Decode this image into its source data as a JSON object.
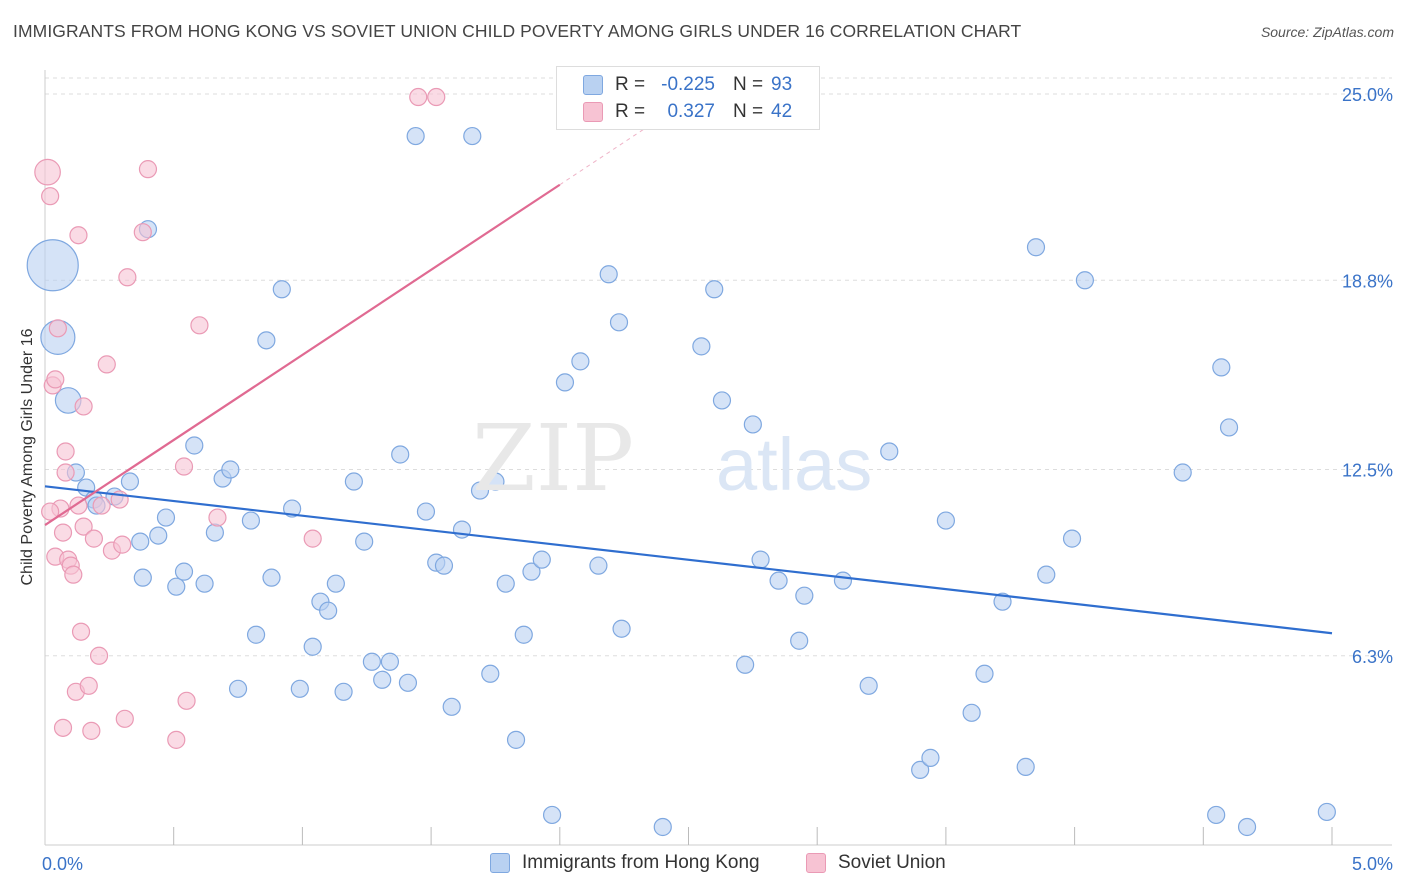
{
  "title": "IMMIGRANTS FROM HONG KONG VS SOVIET UNION CHILD POVERTY AMONG GIRLS UNDER 16 CORRELATION CHART",
  "source": "Source: ZipAtlas.com",
  "watermark": {
    "zip": "ZIP",
    "atlas": "atlas"
  },
  "legend": {
    "r_label": "R =",
    "n_label": "N =",
    "rows": [
      {
        "r": "-0.225",
        "n": "93"
      },
      {
        "r": "0.327",
        "n": "42"
      }
    ]
  },
  "colors": {
    "series1_fill": "#b9d1f1",
    "series1_stroke": "#7fa8e0",
    "series1_line": "#2f6ecf",
    "series2_fill": "#f7c3d3",
    "series2_stroke": "#ea9ab5",
    "series2_line": "#e06a92",
    "tick_label": "#3a73c8",
    "grid": "#dddddd"
  },
  "chart_data": {
    "type": "scatter",
    "title": "IMMIGRANTS FROM HONG KONG VS SOVIET UNION CHILD POVERTY AMONG GIRLS UNDER 16 CORRELATION CHART",
    "xlabel": "",
    "ylabel": "Child Poverty Among Girls Under 16",
    "xlim": [
      0,
      5
    ],
    "ylim": [
      0,
      25.8
    ],
    "x_tick_labels": [
      {
        "value": 0,
        "label": "0.0%"
      },
      {
        "value": 5,
        "label": "5.0%"
      }
    ],
    "y_tick_labels": [
      {
        "value": 6.3,
        "label": "6.3%"
      },
      {
        "value": 12.5,
        "label": "12.5%"
      },
      {
        "value": 18.8,
        "label": "18.8%"
      },
      {
        "value": 25.0,
        "label": "25.0%"
      }
    ],
    "x_minor_ticks": [
      0.5,
      1.0,
      1.5,
      2.0,
      2.5,
      3.0,
      3.5,
      4.0,
      4.5,
      5.0
    ],
    "grid": true,
    "legend_position": "top-center",
    "series": [
      {
        "name": "Immigrants from Hong Kong",
        "r": -0.225,
        "n": 93,
        "trend": {
          "x": [
            0,
            5
          ],
          "y": [
            11.94,
            7.05
          ]
        },
        "points": [
          [
            0.03,
            19.3,
            3
          ],
          [
            0.05,
            16.9,
            2
          ],
          [
            0.09,
            14.8,
            1.5
          ],
          [
            0.12,
            12.4,
            1
          ],
          [
            0.16,
            11.9,
            1
          ],
          [
            0.19,
            11.5,
            1
          ],
          [
            0.2,
            11.3,
            1
          ],
          [
            0.27,
            11.6,
            1
          ],
          [
            0.33,
            12.1,
            1
          ],
          [
            0.37,
            10.1,
            1
          ],
          [
            0.38,
            8.9,
            1
          ],
          [
            0.4,
            20.5,
            1
          ],
          [
            0.44,
            10.3,
            1
          ],
          [
            0.47,
            10.9,
            1
          ],
          [
            0.51,
            8.6,
            1
          ],
          [
            0.54,
            9.1,
            1
          ],
          [
            0.58,
            13.3,
            1
          ],
          [
            0.62,
            8.7,
            1
          ],
          [
            0.66,
            10.4,
            1
          ],
          [
            0.69,
            12.2,
            1
          ],
          [
            0.72,
            12.5,
            1
          ],
          [
            0.75,
            5.2,
            1
          ],
          [
            0.8,
            10.8,
            1
          ],
          [
            0.82,
            7.0,
            1
          ],
          [
            0.86,
            16.8,
            1
          ],
          [
            0.88,
            8.9,
            1
          ],
          [
            0.92,
            18.5,
            1
          ],
          [
            0.96,
            11.2,
            1
          ],
          [
            0.99,
            5.2,
            1
          ],
          [
            1.04,
            6.6,
            1
          ],
          [
            1.07,
            8.1,
            1
          ],
          [
            1.1,
            7.8,
            1
          ],
          [
            1.13,
            8.7,
            1
          ],
          [
            1.16,
            5.1,
            1
          ],
          [
            1.2,
            12.1,
            1
          ],
          [
            1.24,
            10.1,
            1
          ],
          [
            1.27,
            6.1,
            1
          ],
          [
            1.31,
            5.5,
            1
          ],
          [
            1.34,
            6.1,
            1
          ],
          [
            1.38,
            13.0,
            1
          ],
          [
            1.41,
            5.4,
            1
          ],
          [
            1.44,
            23.6,
            1
          ],
          [
            1.48,
            11.1,
            1
          ],
          [
            1.52,
            9.4,
            1
          ],
          [
            1.55,
            9.3,
            1
          ],
          [
            1.58,
            4.6,
            1
          ],
          [
            1.62,
            10.5,
            1
          ],
          [
            1.66,
            23.6,
            1
          ],
          [
            1.69,
            11.8,
            1
          ],
          [
            1.73,
            5.7,
            1
          ],
          [
            1.75,
            12.1,
            1
          ],
          [
            1.79,
            8.7,
            1
          ],
          [
            1.83,
            3.5,
            1
          ],
          [
            1.86,
            7.0,
            1
          ],
          [
            1.89,
            9.1,
            1
          ],
          [
            1.93,
            9.5,
            1
          ],
          [
            1.97,
            1.0,
            1
          ],
          [
            2.02,
            15.4,
            1
          ],
          [
            2.08,
            16.1,
            1
          ],
          [
            2.15,
            9.3,
            1
          ],
          [
            2.19,
            19.0,
            1
          ],
          [
            2.23,
            17.4,
            1
          ],
          [
            2.24,
            7.2,
            1
          ],
          [
            2.4,
            0.6,
            1
          ],
          [
            2.55,
            16.6,
            1
          ],
          [
            2.6,
            18.5,
            1
          ],
          [
            2.63,
            14.8,
            1
          ],
          [
            2.72,
            6.0,
            1
          ],
          [
            2.75,
            14.0,
            1
          ],
          [
            2.78,
            9.5,
            1
          ],
          [
            2.85,
            8.8,
            1
          ],
          [
            2.93,
            6.8,
            1
          ],
          [
            2.95,
            8.3,
            1
          ],
          [
            3.1,
            8.8,
            1
          ],
          [
            3.2,
            5.3,
            1
          ],
          [
            3.28,
            13.1,
            1
          ],
          [
            3.4,
            2.5,
            1
          ],
          [
            3.44,
            2.9,
            1
          ],
          [
            3.5,
            10.8,
            1
          ],
          [
            3.6,
            4.4,
            1
          ],
          [
            3.65,
            5.7,
            1
          ],
          [
            3.72,
            8.1,
            1
          ],
          [
            3.81,
            2.6,
            1
          ],
          [
            3.85,
            19.9,
            1
          ],
          [
            3.89,
            9.0,
            1
          ],
          [
            3.99,
            10.2,
            1
          ],
          [
            4.04,
            18.8,
            1
          ],
          [
            4.42,
            12.4,
            1
          ],
          [
            4.57,
            15.9,
            1
          ],
          [
            4.6,
            13.9,
            1
          ],
          [
            4.55,
            1.0,
            1
          ],
          [
            4.67,
            0.6,
            1
          ],
          [
            4.98,
            1.1,
            1
          ]
        ]
      },
      {
        "name": "Soviet Union",
        "r": 0.327,
        "n": 42,
        "trend": {
          "x": [
            0,
            2
          ],
          "y": [
            10.65,
            21.98
          ]
        },
        "trend_extension": {
          "x": [
            2,
            2.33
          ],
          "y": [
            21.98,
            23.85
          ]
        },
        "points": [
          [
            0.01,
            22.4,
            1.5
          ],
          [
            0.02,
            21.6,
            1
          ],
          [
            0.03,
            15.3,
            1
          ],
          [
            0.04,
            15.5,
            1
          ],
          [
            0.04,
            9.6,
            1
          ],
          [
            0.05,
            17.2,
            1
          ],
          [
            0.06,
            11.2,
            1
          ],
          [
            0.07,
            10.4,
            1
          ],
          [
            0.07,
            3.9,
            1
          ],
          [
            0.08,
            13.1,
            1
          ],
          [
            0.08,
            12.4,
            1
          ],
          [
            0.09,
            9.5,
            1
          ],
          [
            0.1,
            9.3,
            1
          ],
          [
            0.11,
            9.0,
            1
          ],
          [
            0.12,
            5.1,
            1
          ],
          [
            0.13,
            20.3,
            1
          ],
          [
            0.13,
            11.3,
            1
          ],
          [
            0.14,
            7.1,
            1
          ],
          [
            0.15,
            14.6,
            1
          ],
          [
            0.15,
            10.6,
            1
          ],
          [
            0.17,
            5.3,
            1
          ],
          [
            0.18,
            3.8,
            1
          ],
          [
            0.19,
            10.2,
            1
          ],
          [
            0.21,
            6.3,
            1
          ],
          [
            0.22,
            11.3,
            1
          ],
          [
            0.24,
            16.0,
            1
          ],
          [
            0.26,
            9.8,
            1
          ],
          [
            0.29,
            11.5,
            1
          ],
          [
            0.3,
            10.0,
            1
          ],
          [
            0.31,
            4.2,
            1
          ],
          [
            0.32,
            18.9,
            1
          ],
          [
            0.38,
            20.4,
            1
          ],
          [
            0.4,
            22.5,
            1
          ],
          [
            0.51,
            3.5,
            1
          ],
          [
            0.54,
            12.6,
            1
          ],
          [
            0.55,
            4.8,
            1
          ],
          [
            0.6,
            17.3,
            1
          ],
          [
            0.67,
            10.9,
            1
          ],
          [
            1.04,
            10.2,
            1
          ],
          [
            1.45,
            24.9,
            1
          ],
          [
            1.52,
            24.9,
            1
          ],
          [
            0.02,
            11.1,
            1
          ]
        ]
      }
    ]
  },
  "bottom_legend": [
    "Immigrants from Hong Kong",
    "Soviet Union"
  ]
}
